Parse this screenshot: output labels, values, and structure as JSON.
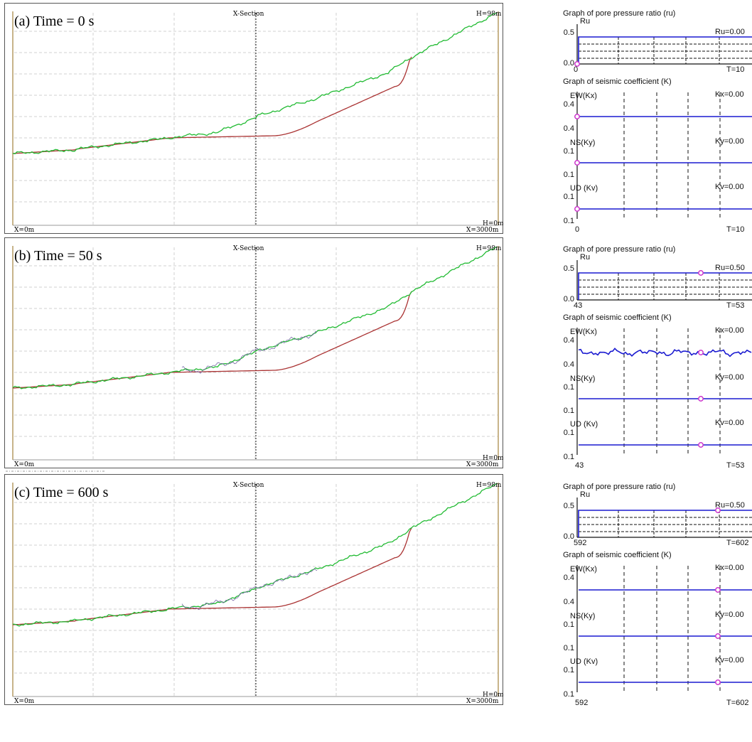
{
  "section_title": "X-Section",
  "x_start_label": "X=0m",
  "x_end_label": "X=3000m",
  "h_top_label": "H=98m",
  "h_bottom_label": "H=0m",
  "colors": {
    "surface": "#22bb33",
    "slip": "#aa3333",
    "graph_line": "#1a1ad0",
    "marker": "#cc33cc",
    "frame_border": "#c8b48a",
    "grid": "#c8c8c8"
  },
  "panels": [
    {
      "caption": "(a) Time = 0 s",
      "ru_graph": {
        "title": "Graph of pore pressure ratio (ru)",
        "axis_label": "Ru",
        "y_top": "0.5",
        "y_bottom": "0.0",
        "value_label": "Ru=0.00",
        "t_start": "0",
        "t_end": "T=10"
      },
      "k_graph": {
        "title": "Graph of seismic coefficient (K)",
        "ew": {
          "label": "EW(Kx)",
          "y_top": "0.4",
          "y_bottom": "− 0.4",
          "value_label": "Kx=0.00"
        },
        "ns": {
          "label": "NS(Ky)",
          "y_top": "0.1",
          "y_bottom": "− 0.1",
          "value_label": "Ky=0.00"
        },
        "ud": {
          "label": "UD (Kv)",
          "y_top": "0.1",
          "y_bottom": "− 0.1",
          "value_label": "Kv=0.00"
        },
        "t_start": "0",
        "t_end": "T=10"
      }
    },
    {
      "caption": "(b) Time = 50 s",
      "ru_graph": {
        "title": "Graph of pore pressure ratio (ru)",
        "axis_label": "Ru",
        "y_top": "0.5",
        "y_bottom": "0.0",
        "value_label": "Ru=0.50",
        "t_start": "43",
        "t_end": "T=53"
      },
      "k_graph": {
        "title": "Graph of seismic coefficient (K)",
        "ew": {
          "label": "EW(Kx)",
          "y_top": "0.4",
          "y_bottom": "− 0.4",
          "value_label": "Kx=0.00"
        },
        "ns": {
          "label": "NS(Ky)",
          "y_top": "0.1",
          "y_bottom": "− 0.1",
          "value_label": "Ky=0.00"
        },
        "ud": {
          "label": "UD (Kv)",
          "y_top": "0.1",
          "y_bottom": "− 0.1",
          "value_label": "Kv=0.00"
        },
        "t_start": "43",
        "t_end": "T=53"
      }
    },
    {
      "caption": "(c) Time = 600 s",
      "ru_graph": {
        "title": "Graph of pore pressure ratio (ru)",
        "axis_label": "Ru",
        "y_top": "0.5",
        "y_bottom": "0.0",
        "value_label": "Ru=0.50",
        "t_start": "592",
        "t_end": "T=602"
      },
      "k_graph": {
        "title": "Graph of seismic coefficient (K)",
        "ew": {
          "label": "EW(Kx)",
          "y_top": "0.4",
          "y_bottom": "− 0.4",
          "value_label": "Kx=0.00"
        },
        "ns": {
          "label": "NS(Ky)",
          "y_top": "0.1",
          "y_bottom": "− 0.1",
          "value_label": "Ky=0.00"
        },
        "ud": {
          "label": "UD (Kv)",
          "y_top": "0.1",
          "y_bottom": "− 0.1",
          "value_label": "Kv=0.00"
        },
        "t_start": "592",
        "t_end": "T=602"
      }
    }
  ]
}
